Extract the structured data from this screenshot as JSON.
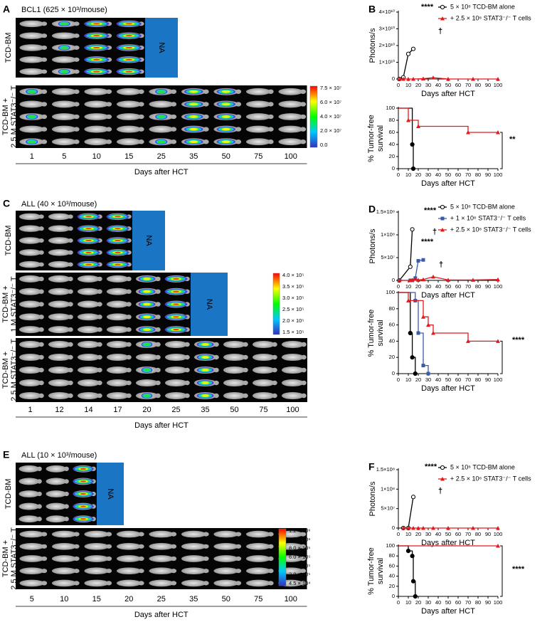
{
  "panels": [
    {
      "letter": "A",
      "title": "BCL1 (625 × 10³/mouse)",
      "rows": [
        {
          "label": [
            "TCD-BM"
          ],
          "na": "NA"
        },
        {
          "label": [
            "TCD-BM +",
            "2.5 M STAT3⁻/⁻ T"
          ]
        }
      ],
      "colorbar": [
        "7.5 × 10⁷",
        "6.0 × 10⁷",
        "4.0 × 10⁷",
        "2.0 × 10⁷",
        "0.0"
      ],
      "days": [
        1,
        5,
        10,
        15,
        25,
        35,
        50,
        75,
        100
      ],
      "xlabel": "Days after HCT"
    },
    {
      "letter": "C",
      "title": "ALL (40 × 10³/mouse)",
      "rows": [
        {
          "label": [
            "TCD-BM"
          ],
          "na": "NA"
        },
        {
          "label": [
            "TCD-BM +",
            "1 M STAT3⁻/⁻ T"
          ],
          "na": "NA"
        },
        {
          "label": [
            "TCD-BM +",
            "2.5 M STAT3⁻/⁻ T"
          ]
        }
      ],
      "colorbar": [
        "4.0 × 10⁵",
        "3.5 × 10⁵",
        "3.0 × 10⁵",
        "2.5 × 10⁵",
        "2.0 × 10⁵",
        "1.5 × 10⁵"
      ],
      "days": [
        1,
        12,
        14,
        17,
        20,
        25,
        35,
        50,
        75,
        100
      ],
      "xlabel": "Days after HCT"
    },
    {
      "letter": "E",
      "title": "ALL (10 × 10³/mouse)",
      "rows": [
        {
          "label": [
            "TCD-BM"
          ],
          "na": "NA"
        },
        {
          "label": [
            "TCD-BM +",
            "2.5 M STAT3⁻/⁻ T"
          ]
        }
      ],
      "colorbar": [
        "1.2 × 10⁶",
        "1.0 × 10⁶",
        "8.0 × 10⁵",
        "6.0 × 10⁵",
        "4.0 × 10⁵",
        "2.0 × 10⁵",
        "4.5 × 10⁴"
      ],
      "days": [
        5,
        10,
        15,
        20,
        25,
        35,
        50,
        75,
        100
      ],
      "xlabel": "Days after HCT"
    }
  ],
  "chart_data": [
    {
      "type": "line",
      "panel": "B",
      "ylabel": "Photons/s",
      "xlabel": "Days after HCT",
      "legend": "upper right",
      "xlim": [
        0,
        100
      ],
      "xticks": [
        0,
        10,
        20,
        30,
        40,
        50,
        60,
        70,
        80,
        90,
        100
      ],
      "ylim": [
        0,
        40000000000
      ],
      "yticks": [
        0,
        {
          "value": 10000000000,
          "label": "1×10¹⁰"
        },
        {
          "value": 20000000000,
          "label": "2×10¹⁰"
        },
        {
          "value": 30000000000,
          "label": "3×10¹⁰"
        },
        {
          "value": 40000000000,
          "label": "4×10¹⁰"
        }
      ],
      "annotations": [
        "****",
        "†"
      ],
      "series": [
        {
          "name": "5 × 10⁶ TCD-BM alone",
          "color": "#000000",
          "marker": "circle",
          "x": [
            1,
            5,
            10,
            15
          ],
          "values": [
            0,
            1000000000,
            15000000000,
            18000000000
          ]
        },
        {
          "name": "+ 2.5 × 10⁶ STAT3⁻/⁻ T cells",
          "color": "#e4191c",
          "marker": "triangle",
          "x": [
            1,
            5,
            10,
            15,
            25,
            35,
            50,
            75,
            100
          ],
          "values": [
            0,
            0,
            0,
            0,
            200000000,
            800000000,
            0,
            0,
            0
          ]
        }
      ]
    },
    {
      "type": "step",
      "ylabel": [
        "% Tumor-free",
        "survival"
      ],
      "xlabel": "Days after HCT",
      "xlim": [
        0,
        100
      ],
      "xticks": [
        0,
        10,
        20,
        30,
        40,
        50,
        60,
        70,
        80,
        90,
        100
      ],
      "ylim": [
        0,
        100
      ],
      "yticks": [
        0,
        20,
        40,
        60,
        80,
        100
      ],
      "annotations": [
        "**"
      ],
      "series": [
        {
          "color": "#000000",
          "marker": "circle",
          "x": [
            0,
            14,
            15
          ],
          "values": [
            100,
            40,
            0
          ]
        },
        {
          "color": "#e4191c",
          "marker": "triangle",
          "x": [
            0,
            10,
            20,
            70,
            100
          ],
          "values": [
            100,
            80,
            70,
            60,
            60
          ]
        }
      ]
    },
    {
      "type": "line",
      "panel": "D",
      "ylabel": "Photons/s",
      "xlabel": "Days after HCT",
      "legend": "upper right",
      "xlim": [
        0,
        100
      ],
      "xticks": [
        0,
        10,
        20,
        30,
        40,
        50,
        60,
        70,
        80,
        90,
        100
      ],
      "ylim": [
        0,
        150000000
      ],
      "yticks": [
        0,
        {
          "value": 50000000,
          "label": "5×10⁷"
        },
        {
          "value": 100000000,
          "label": "1×10⁸"
        },
        {
          "value": 150000000,
          "label": "1.5×10⁸"
        }
      ],
      "annotations": [
        "****",
        "†",
        "****",
        "†"
      ],
      "series": [
        {
          "name": "5 × 10⁶ TCD-BM alone",
          "color": "#000000",
          "marker": "circle",
          "x": [
            1,
            12,
            14
          ],
          "values": [
            0,
            30000000,
            112000000
          ]
        },
        {
          "name": "+ 1 × 10⁶ STAT3⁻/⁻ T cells",
          "color": "#3a5ba9",
          "marker": "square",
          "x": [
            1,
            12,
            14,
            17,
            20,
            25
          ],
          "values": [
            0,
            0,
            0,
            5000000,
            43000000,
            45000000
          ]
        },
        {
          "name": "+ 2.5 × 10⁶ STAT3⁻/⁻ T cells",
          "color": "#e4191c",
          "marker": "triangle",
          "x": [
            1,
            12,
            14,
            17,
            20,
            25,
            35,
            50,
            75,
            100
          ],
          "values": [
            0,
            0,
            1000000,
            3000000,
            1000000,
            2000000,
            8000000,
            1000000,
            1000000,
            2000000
          ]
        }
      ]
    },
    {
      "type": "step",
      "ylabel": [
        "% Tumor-free",
        "survival"
      ],
      "xlabel": "Days after HCT",
      "xlim": [
        0,
        100
      ],
      "xticks": [
        0,
        10,
        20,
        30,
        40,
        50,
        60,
        70,
        80,
        90,
        100
      ],
      "ylim": [
        0,
        100
      ],
      "yticks": [
        0,
        20,
        40,
        60,
        80,
        100
      ],
      "annotations": [
        "****"
      ],
      "series": [
        {
          "color": "#000000",
          "marker": "circle",
          "x": [
            0,
            12,
            14,
            17
          ],
          "values": [
            100,
            50,
            20,
            0
          ]
        },
        {
          "color": "#3a5ba9",
          "marker": "square",
          "x": [
            0,
            17,
            20,
            25,
            30
          ],
          "values": [
            100,
            90,
            50,
            10,
            0
          ]
        },
        {
          "color": "#e4191c",
          "marker": "triangle",
          "x": [
            0,
            10,
            25,
            30,
            35,
            70,
            100
          ],
          "values": [
            100,
            90,
            70,
            60,
            50,
            40,
            40
          ]
        }
      ]
    },
    {
      "type": "line",
      "panel": "F",
      "ylabel": "Photons/s",
      "xlabel": "Days after HCT",
      "legend": "upper right",
      "xlim": [
        0,
        100
      ],
      "xticks": [
        0,
        10,
        20,
        30,
        40,
        50,
        60,
        70,
        80,
        90,
        100
      ],
      "ylim": [
        0,
        150000000
      ],
      "yticks": [
        0,
        {
          "value": 50000000,
          "label": "5×10⁷"
        },
        {
          "value": 100000000,
          "label": "1×10⁸"
        },
        {
          "value": 150000000,
          "label": "1.5×10⁸"
        }
      ],
      "annotations": [
        "****",
        "†"
      ],
      "series": [
        {
          "name": "5 × 10⁶ TCD-BM alone",
          "color": "#000000",
          "marker": "circle",
          "x": [
            5,
            10,
            15
          ],
          "values": [
            0,
            0,
            80000000
          ]
        },
        {
          "name": "+ 2.5 × 10⁶ STAT3⁻/⁻ T cells",
          "color": "#e4191c",
          "marker": "triangle",
          "x": [
            5,
            10,
            15,
            20,
            25,
            35,
            50,
            75,
            100
          ],
          "values": [
            0,
            0,
            0,
            0,
            0,
            0,
            0,
            0,
            0
          ]
        }
      ]
    },
    {
      "type": "step",
      "ylabel": [
        "% Tumor-free",
        "survival"
      ],
      "xlabel": "Days after HCT",
      "xlim": [
        0,
        100
      ],
      "xticks": [
        0,
        10,
        20,
        30,
        40,
        50,
        60,
        70,
        80,
        90,
        100
      ],
      "ylim": [
        0,
        100
      ],
      "yticks": [
        0,
        20,
        40,
        60,
        80,
        100
      ],
      "annotations": [
        "****"
      ],
      "series": [
        {
          "color": "#000000",
          "marker": "circle",
          "x": [
            0,
            10,
            14,
            15,
            17
          ],
          "values": [
            100,
            90,
            80,
            30,
            0
          ]
        },
        {
          "color": "#e4191c",
          "marker": "triangle",
          "x": [
            0,
            100
          ],
          "values": [
            100,
            100
          ]
        }
      ]
    }
  ]
}
